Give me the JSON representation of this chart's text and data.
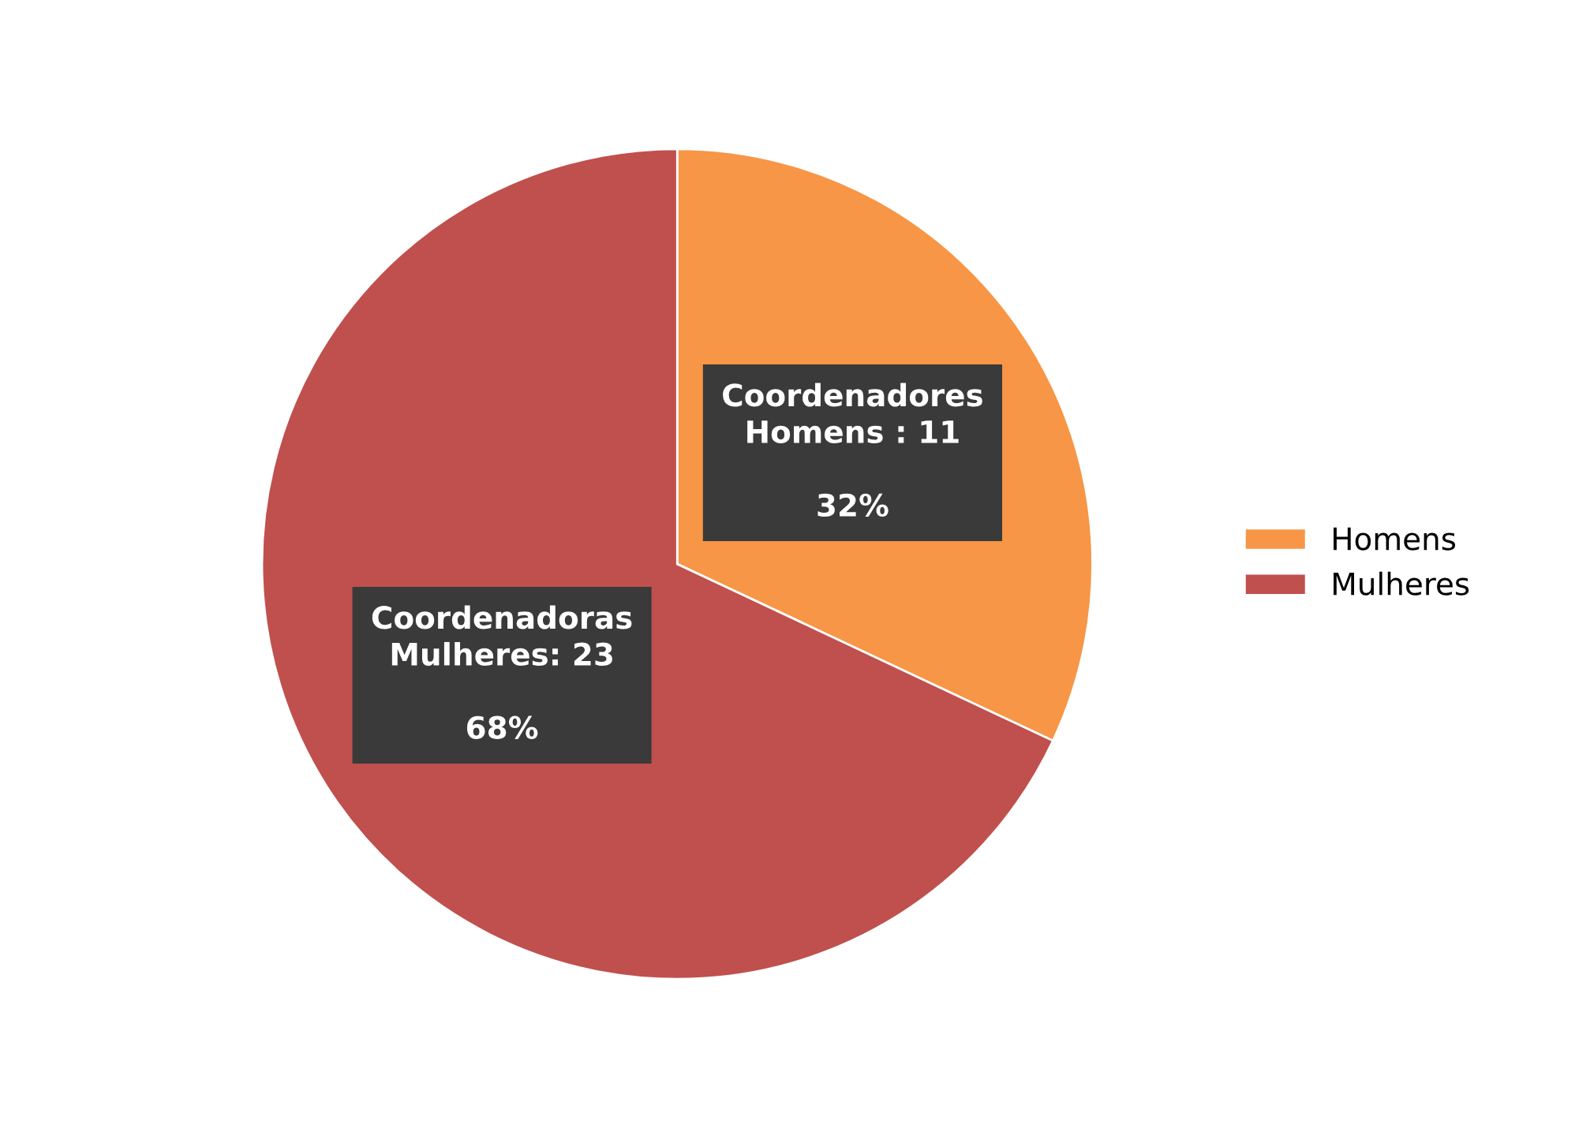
{
  "chart_data": {
    "type": "pie",
    "categories": [
      "Homens",
      "Mulheres"
    ],
    "values": [
      32,
      68
    ],
    "colors": [
      "#f79646",
      "#c0504d"
    ],
    "value_labels": [
      "Coordenadores\nHomens : 11\n\n32%",
      "Coordenadoras\nMulheres: 23\n\n68%"
    ],
    "legend": "right"
  }
}
